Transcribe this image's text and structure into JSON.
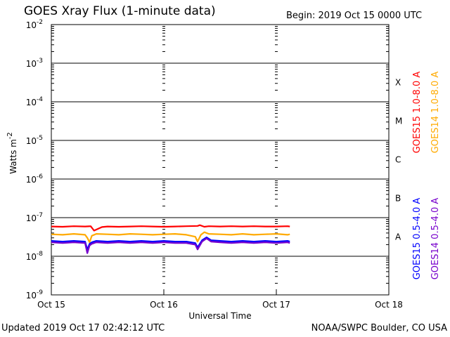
{
  "header": {
    "title": "GOES Xray Flux (1-minute data)",
    "begin": "Begin:  2019 Oct 15 0000 UTC"
  },
  "footer": {
    "updated": "Updated 2019 Oct 17 02:42:12 UTC",
    "credit": "NOAA/SWPC Boulder, CO USA"
  },
  "chart_data": {
    "type": "line",
    "xlabel": "Universal Time",
    "ylabel": "Watts m",
    "ylabel_superscript": "-2",
    "x_unit": "days since 2019 Oct 15 0000 UTC",
    "xlim": [
      0,
      3
    ],
    "ylim_exponent": [
      -9,
      -2
    ],
    "y_scale": "log",
    "x_ticks": [
      {
        "value": 0,
        "label": "Oct 15"
      },
      {
        "value": 1,
        "label": "Oct 16"
      },
      {
        "value": 2,
        "label": "Oct 17"
      },
      {
        "value": 3,
        "label": "Oct 18"
      }
    ],
    "y_ticks": [
      {
        "exp": -2,
        "label": "10",
        "sup": "-2"
      },
      {
        "exp": -3,
        "label": "10",
        "sup": "-3"
      },
      {
        "exp": -4,
        "label": "10",
        "sup": "-4"
      },
      {
        "exp": -5,
        "label": "10",
        "sup": "-5"
      },
      {
        "exp": -6,
        "label": "10",
        "sup": "-6"
      },
      {
        "exp": -7,
        "label": "10",
        "sup": "-7"
      },
      {
        "exp": -8,
        "label": "10",
        "sup": "-8"
      },
      {
        "exp": -9,
        "label": "10",
        "sup": "-9"
      }
    ],
    "flare_classes": [
      {
        "label": "X",
        "exp": -3.5
      },
      {
        "label": "M",
        "exp": -4.5
      },
      {
        "label": "C",
        "exp": -5.5
      },
      {
        "label": "B",
        "exp": -6.5
      },
      {
        "label": "A",
        "exp": -7.5
      }
    ],
    "series": [
      {
        "name": "GOES15 1.0-8.0 A",
        "color": "#ff0000",
        "x": [
          0,
          0.1,
          0.2,
          0.3,
          0.35,
          0.38,
          0.4,
          0.45,
          0.5,
          0.6,
          0.7,
          0.8,
          0.9,
          1.0,
          1.1,
          1.2,
          1.3,
          1.32,
          1.36,
          1.4,
          1.5,
          1.6,
          1.7,
          1.8,
          1.9,
          2.0,
          2.1,
          2.12
        ],
        "values": [
          5.9e-08,
          5.8e-08,
          6e-08,
          5.9e-08,
          6e-08,
          4.6e-08,
          4.9e-08,
          5.7e-08,
          5.9e-08,
          5.8e-08,
          5.9e-08,
          6e-08,
          5.9e-08,
          5.8e-08,
          5.9e-08,
          6e-08,
          6.1e-08,
          6.4e-08,
          5.8e-08,
          6e-08,
          5.9e-08,
          6e-08,
          5.9e-08,
          6e-08,
          5.9e-08,
          5.9e-08,
          6e-08,
          5.9e-08
        ]
      },
      {
        "name": "GOES14 1.0-8.0 A",
        "color": "#ffaa00",
        "x": [
          0,
          0.1,
          0.2,
          0.3,
          0.32,
          0.34,
          0.36,
          0.4,
          0.5,
          0.6,
          0.7,
          0.8,
          0.9,
          1.0,
          1.1,
          1.2,
          1.28,
          1.3,
          1.33,
          1.36,
          1.4,
          1.5,
          1.6,
          1.7,
          1.8,
          1.9,
          2.0,
          2.1,
          2.12
        ],
        "values": [
          3.7e-08,
          3.6e-08,
          3.8e-08,
          3.6e-08,
          3e-08,
          2.3e-08,
          3.4e-08,
          3.8e-08,
          3.7e-08,
          3.6e-08,
          3.8e-08,
          3.7e-08,
          3.6e-08,
          3.7e-08,
          3.8e-08,
          3.6e-08,
          3.2e-08,
          2.4e-08,
          3.6e-08,
          4.2e-08,
          3.8e-08,
          3.7e-08,
          3.6e-08,
          3.8e-08,
          3.6e-08,
          3.7e-08,
          3.8e-08,
          3.6e-08,
          3.7e-08
        ]
      },
      {
        "name": "GOES15 0.5-4.0 A",
        "color": "#0000ff",
        "x": [
          0,
          0.1,
          0.2,
          0.3,
          0.32,
          0.34,
          0.36,
          0.4,
          0.5,
          0.6,
          0.7,
          0.8,
          0.9,
          1.0,
          1.1,
          1.2,
          1.28,
          1.3,
          1.34,
          1.38,
          1.42,
          1.5,
          1.6,
          1.7,
          1.8,
          1.9,
          2.0,
          2.1,
          2.12
        ],
        "values": [
          2.5e-08,
          2.4e-08,
          2.5e-08,
          2.4e-08,
          1.5e-08,
          2.1e-08,
          2.3e-08,
          2.5e-08,
          2.4e-08,
          2.5e-08,
          2.4e-08,
          2.5e-08,
          2.4e-08,
          2.5e-08,
          2.4e-08,
          2.4e-08,
          2.2e-08,
          1.7e-08,
          2.6e-08,
          3.1e-08,
          2.6e-08,
          2.5e-08,
          2.4e-08,
          2.5e-08,
          2.4e-08,
          2.5e-08,
          2.4e-08,
          2.5e-08,
          2.4e-08
        ]
      },
      {
        "name": "GOES14 0.5-4.0 A",
        "color": "#7700cc",
        "x": [
          0,
          0.1,
          0.2,
          0.3,
          0.32,
          0.34,
          0.36,
          0.4,
          0.5,
          0.6,
          0.7,
          0.8,
          0.9,
          1.0,
          1.1,
          1.2,
          1.28,
          1.3,
          1.34,
          1.38,
          1.42,
          1.5,
          1.6,
          1.7,
          1.8,
          1.9,
          2.0,
          2.1,
          2.12
        ],
        "values": [
          2.3e-08,
          2.2e-08,
          2.3e-08,
          2.2e-08,
          1.2e-08,
          1.9e-08,
          2.1e-08,
          2.3e-08,
          2.2e-08,
          2.3e-08,
          2.2e-08,
          2.3e-08,
          2.2e-08,
          2.3e-08,
          2.2e-08,
          2.2e-08,
          2e-08,
          1.5e-08,
          2.4e-08,
          2.9e-08,
          2.4e-08,
          2.3e-08,
          2.2e-08,
          2.3e-08,
          2.2e-08,
          2.3e-08,
          2.2e-08,
          2.3e-08,
          2.2e-08
        ]
      }
    ],
    "grid": "horizontal lines at decades from 10^-8 to 10^-3",
    "legend_placement": "right-vertical"
  }
}
